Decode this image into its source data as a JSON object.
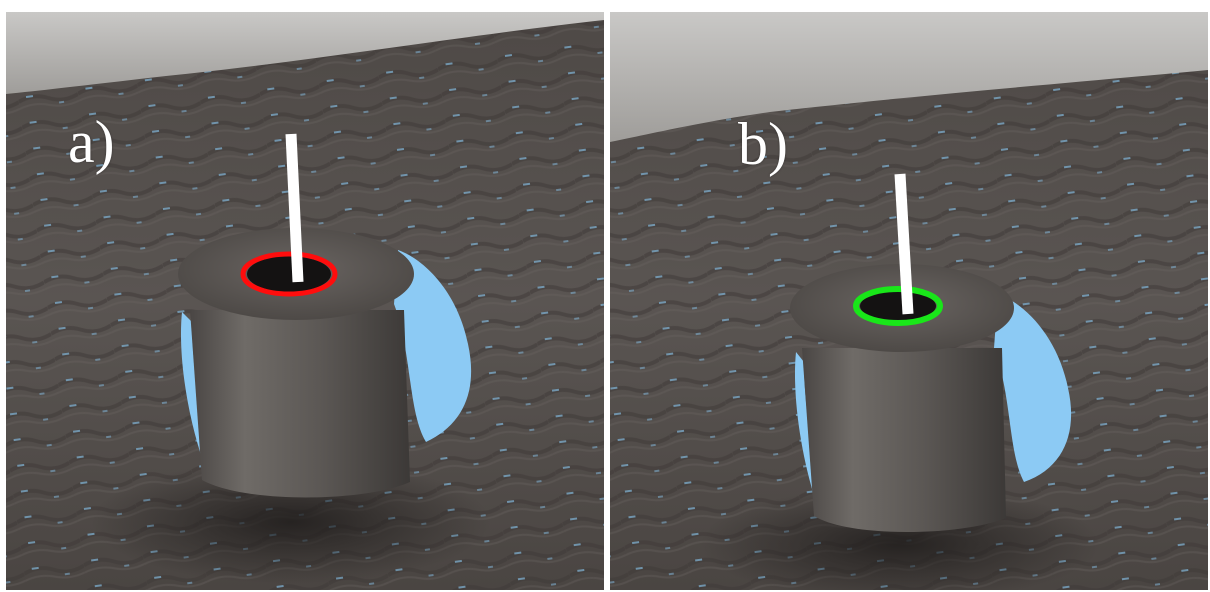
{
  "panels": [
    {
      "label": "a)",
      "rim_color": "#ff0d0d",
      "rim_status": "red-rim"
    },
    {
      "label": "b)",
      "rim_color": "#19e619",
      "rim_status": "green-rim"
    }
  ],
  "colors": {
    "floor": "#55504d",
    "wall": "#b9b7b4",
    "missing_depth": "#8ccaf4",
    "axis": "#ffffff"
  }
}
